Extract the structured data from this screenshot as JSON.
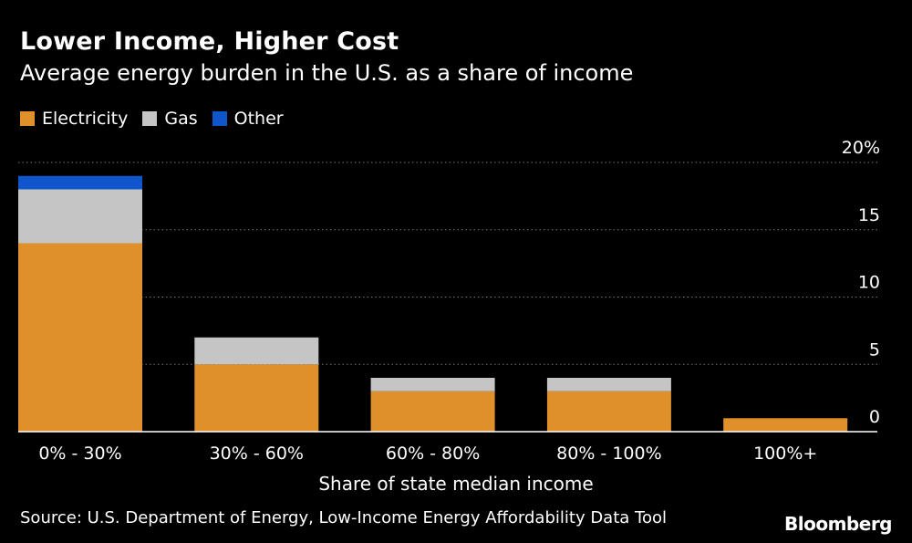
{
  "header": {
    "title": "Lower Income, Higher Cost",
    "subtitle": "Average energy burden in the U.S. as a share of income"
  },
  "legend": [
    {
      "label": "Electricity",
      "color": "#E0902A"
    },
    {
      "label": "Gas",
      "color": "#C5C5C5"
    },
    {
      "label": "Other",
      "color": "#1155CC"
    }
  ],
  "chart_data": {
    "type": "bar",
    "stacked": true,
    "categories": [
      "0% - 30%",
      "30% - 60%",
      "60% - 80%",
      "80% - 100%",
      "100%+"
    ],
    "series": [
      {
        "name": "Electricity",
        "color": "#E0902A",
        "values": [
          14,
          5,
          3,
          3,
          1
        ]
      },
      {
        "name": "Gas",
        "color": "#C5C5C5",
        "values": [
          4,
          2,
          1,
          1,
          0
        ]
      },
      {
        "name": "Other",
        "color": "#1155CC",
        "values": [
          1,
          0,
          0,
          0,
          0
        ]
      }
    ],
    "yticks": [
      0,
      5,
      10,
      15,
      20
    ],
    "ytick_labels": [
      "0",
      "5",
      "10",
      "15",
      "20%"
    ],
    "ylim": [
      0,
      20
    ],
    "xlabel": "Share of state median income",
    "ylabel": "",
    "grid": true
  },
  "footer": {
    "source": "Source: U.S. Department of Energy, Low-Income Energy Affordability Data Tool",
    "brand": "Bloomberg"
  }
}
